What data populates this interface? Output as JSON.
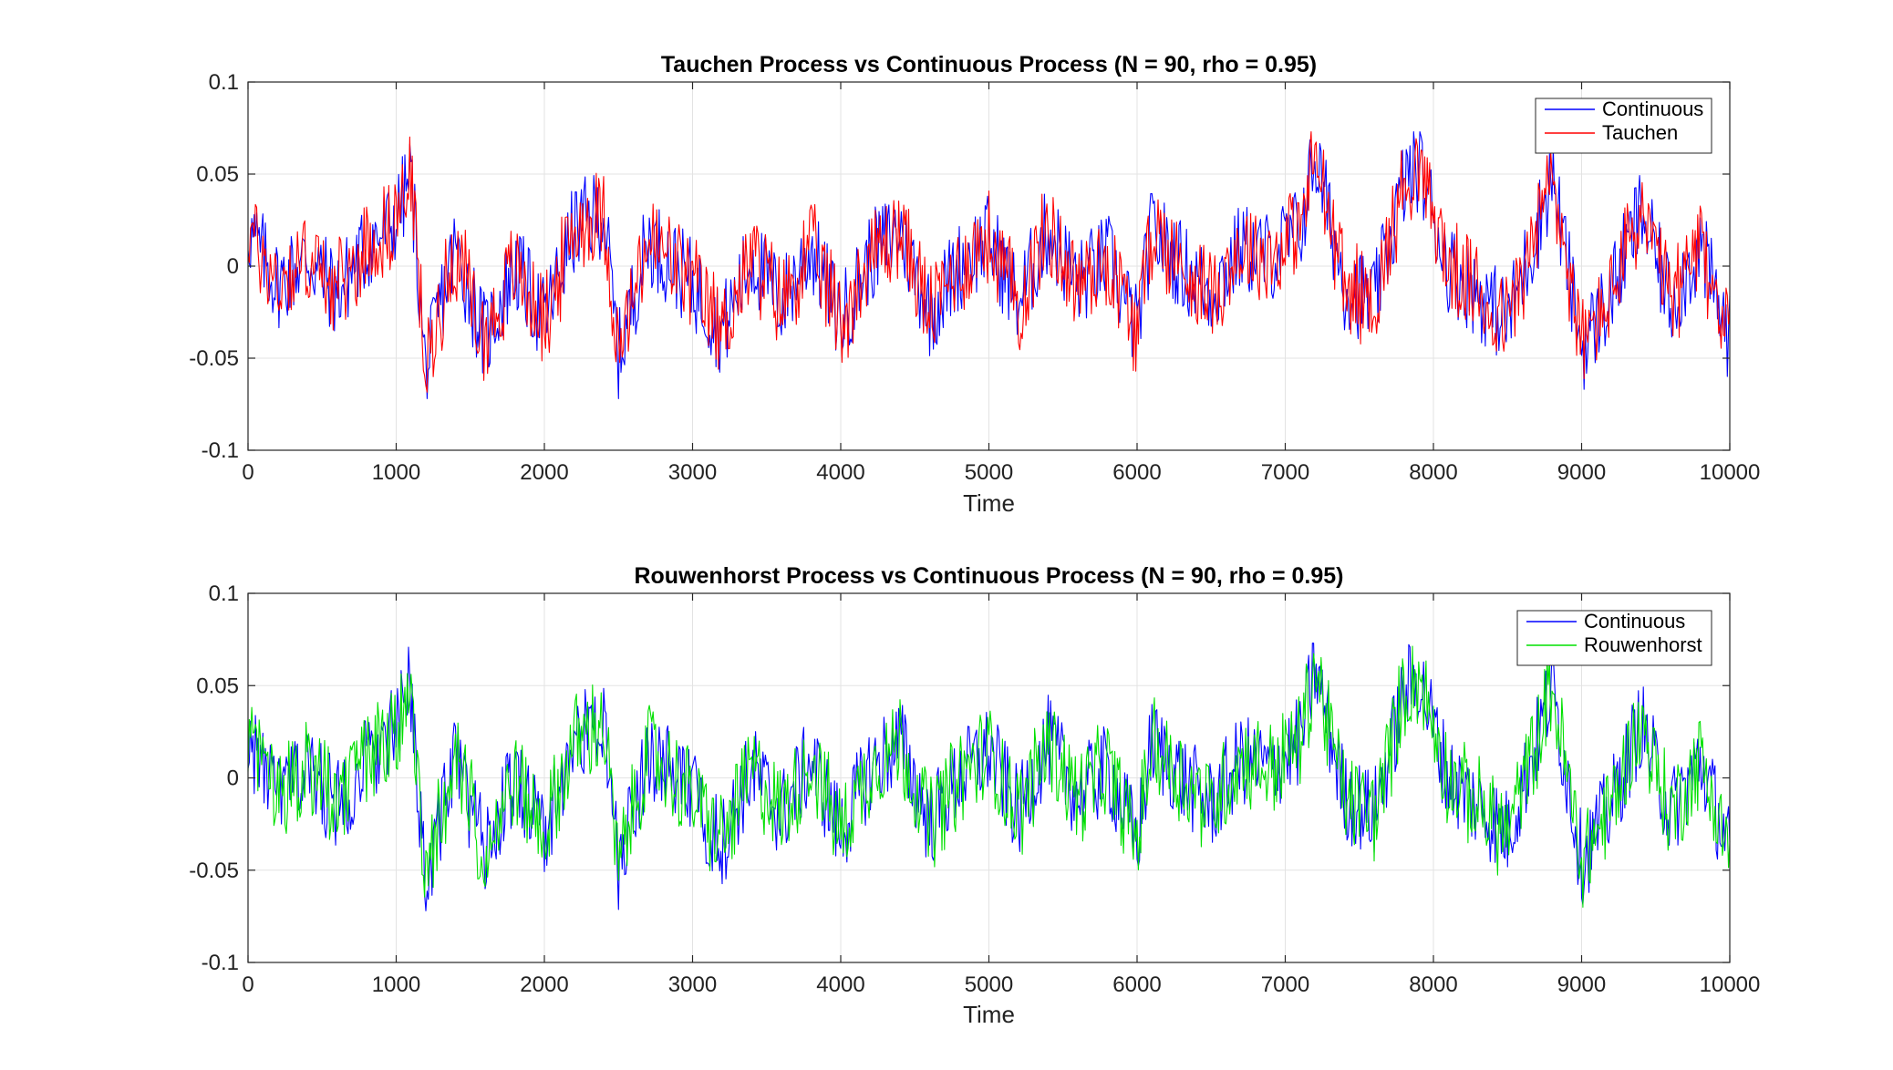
{
  "chart_data": [
    {
      "type": "line",
      "title": "Tauchen Process vs Continuous Process (N = 90, rho = 0.95)",
      "xlabel": "Time",
      "ylabel": "",
      "xlim": [
        0,
        10000
      ],
      "ylim": [
        -0.1,
        0.1
      ],
      "xticks": [
        0,
        1000,
        2000,
        3000,
        4000,
        5000,
        6000,
        7000,
        8000,
        9000,
        10000
      ],
      "xtick_labels": [
        "0",
        "1000",
        "2000",
        "3000",
        "4000",
        "5000",
        "6000",
        "7000",
        "8000",
        "9000",
        "10000"
      ],
      "yticks": [
        -0.1,
        -0.05,
        0,
        0.05,
        0.1
      ],
      "ytick_labels": [
        "-0.1",
        "-0.05",
        "0",
        "0.05",
        "0.1"
      ],
      "grid": true,
      "legend_position": "top-right",
      "x": [
        0,
        200,
        400,
        600,
        800,
        1000,
        1100,
        1200,
        1300,
        1400,
        1600,
        1800,
        2000,
        2200,
        2400,
        2500,
        2700,
        3000,
        3200,
        3400,
        3600,
        3800,
        4000,
        4200,
        4400,
        4600,
        4800,
        5000,
        5200,
        5400,
        5600,
        5800,
        6000,
        6100,
        6300,
        6500,
        6700,
        6900,
        7100,
        7200,
        7400,
        7600,
        7800,
        7900,
        8100,
        8300,
        8500,
        8700,
        8800,
        9000,
        9200,
        9400,
        9600,
        9800,
        10000
      ],
      "series": [
        {
          "name": "Continuous",
          "color": "#0000ff",
          "values": [
            0.02,
            -0.01,
            0.005,
            -0.015,
            0.01,
            0.025,
            0.05,
            -0.06,
            -0.02,
            0.01,
            -0.04,
            0.0,
            -0.03,
            0.02,
            0.03,
            -0.05,
            0.015,
            -0.01,
            -0.035,
            0.005,
            -0.02,
            0.01,
            -0.03,
            0.005,
            0.02,
            -0.025,
            0.0,
            0.015,
            -0.02,
            0.02,
            -0.01,
            0.005,
            -0.035,
            0.02,
            0.0,
            -0.015,
            0.01,
            0.005,
            0.02,
            0.06,
            -0.01,
            -0.02,
            0.045,
            0.055,
            0.0,
            -0.015,
            -0.03,
            0.02,
            0.05,
            -0.045,
            -0.015,
            0.03,
            -0.02,
            0.01,
            -0.04
          ]
        },
        {
          "name": "Tauchen",
          "color": "#ff0000",
          "values": [
            0.02,
            -0.01,
            0.005,
            -0.015,
            0.01,
            0.025,
            0.05,
            -0.06,
            -0.02,
            0.01,
            -0.04,
            0.0,
            -0.03,
            0.02,
            0.03,
            -0.05,
            0.015,
            -0.01,
            -0.035,
            0.005,
            -0.02,
            0.01,
            -0.03,
            0.005,
            0.02,
            -0.025,
            0.0,
            0.015,
            -0.02,
            0.02,
            -0.01,
            0.005,
            -0.035,
            0.02,
            0.0,
            -0.015,
            0.01,
            0.005,
            0.02,
            0.06,
            -0.01,
            -0.02,
            0.045,
            0.055,
            0.0,
            -0.015,
            -0.03,
            0.02,
            0.05,
            -0.045,
            -0.015,
            0.03,
            -0.02,
            0.01,
            -0.04
          ]
        }
      ]
    },
    {
      "type": "line",
      "title": "Rouwenhorst Process vs Continuous Process (N = 90, rho = 0.95)",
      "xlabel": "Time",
      "ylabel": "",
      "xlim": [
        0,
        10000
      ],
      "ylim": [
        -0.1,
        0.1
      ],
      "xticks": [
        0,
        1000,
        2000,
        3000,
        4000,
        5000,
        6000,
        7000,
        8000,
        9000,
        10000
      ],
      "xtick_labels": [
        "0",
        "1000",
        "2000",
        "3000",
        "4000",
        "5000",
        "6000",
        "7000",
        "8000",
        "9000",
        "10000"
      ],
      "yticks": [
        -0.1,
        -0.05,
        0,
        0.05,
        0.1
      ],
      "ytick_labels": [
        "-0.1",
        "-0.05",
        "0",
        "0.05",
        "0.1"
      ],
      "grid": true,
      "legend_position": "top-right",
      "x": [
        0,
        200,
        400,
        600,
        800,
        1000,
        1100,
        1200,
        1300,
        1400,
        1600,
        1800,
        2000,
        2200,
        2400,
        2500,
        2700,
        3000,
        3200,
        3400,
        3600,
        3800,
        4000,
        4200,
        4400,
        4600,
        4800,
        5000,
        5200,
        5400,
        5600,
        5800,
        6000,
        6100,
        6300,
        6500,
        6700,
        6900,
        7100,
        7200,
        7400,
        7600,
        7800,
        7900,
        8100,
        8300,
        8500,
        8700,
        8800,
        9000,
        9200,
        9400,
        9600,
        9800,
        10000
      ],
      "series": [
        {
          "name": "Continuous",
          "color": "#0000ff",
          "values": [
            0.02,
            -0.01,
            0.005,
            -0.015,
            0.01,
            0.025,
            0.05,
            -0.06,
            -0.02,
            0.01,
            -0.04,
            0.0,
            -0.03,
            0.02,
            0.03,
            -0.05,
            0.015,
            -0.01,
            -0.035,
            0.005,
            -0.02,
            0.01,
            -0.03,
            0.005,
            0.02,
            -0.025,
            0.0,
            0.015,
            -0.02,
            0.02,
            -0.01,
            0.005,
            -0.035,
            0.02,
            0.0,
            -0.015,
            0.01,
            0.005,
            0.02,
            0.06,
            -0.01,
            -0.02,
            0.045,
            0.055,
            0.0,
            -0.015,
            -0.03,
            0.02,
            0.05,
            -0.045,
            -0.015,
            0.03,
            -0.02,
            0.01,
            -0.04
          ]
        },
        {
          "name": "Rouwenhorst",
          "color": "#00e000",
          "values": [
            0.02,
            -0.01,
            0.005,
            -0.015,
            0.01,
            0.025,
            0.05,
            -0.06,
            -0.02,
            0.01,
            -0.04,
            0.0,
            -0.03,
            0.02,
            0.03,
            -0.05,
            0.015,
            -0.01,
            -0.035,
            0.005,
            -0.02,
            0.01,
            -0.03,
            0.005,
            0.02,
            -0.025,
            0.0,
            0.015,
            -0.02,
            0.02,
            -0.01,
            0.005,
            -0.035,
            0.02,
            0.0,
            -0.015,
            0.01,
            0.005,
            0.02,
            0.06,
            -0.01,
            -0.02,
            0.045,
            0.055,
            0.0,
            -0.015,
            -0.03,
            0.02,
            0.05,
            -0.045,
            -0.015,
            0.03,
            -0.02,
            0.01,
            -0.04
          ]
        }
      ]
    }
  ]
}
